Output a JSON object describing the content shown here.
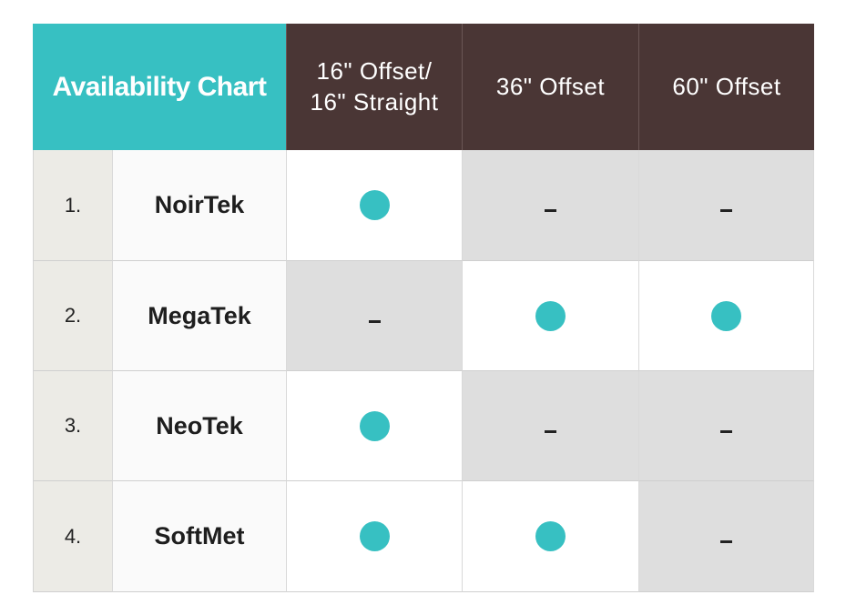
{
  "chart_data": {
    "type": "table",
    "title": "Availability Chart",
    "columns": [
      "16\" Offset/\n16\" Straight",
      "36\" Offset",
      "60\" Offset"
    ],
    "rows": [
      {
        "number": "1.",
        "name": "NoirTek",
        "availability": [
          true,
          false,
          false
        ]
      },
      {
        "number": "2.",
        "name": "MegaTek",
        "availability": [
          false,
          true,
          true
        ]
      },
      {
        "number": "3.",
        "name": "NeoTek",
        "availability": [
          true,
          false,
          false
        ]
      },
      {
        "number": "4.",
        "name": "SoftMet",
        "availability": [
          true,
          true,
          false
        ]
      }
    ],
    "available_symbol": "filled-circle",
    "unavailable_symbol": "dash"
  },
  "colors": {
    "accent": "#37c0c2",
    "header_dark": "#4a3635",
    "unavailable_bg": "#dedede",
    "number_bg": "#ecebe6"
  }
}
